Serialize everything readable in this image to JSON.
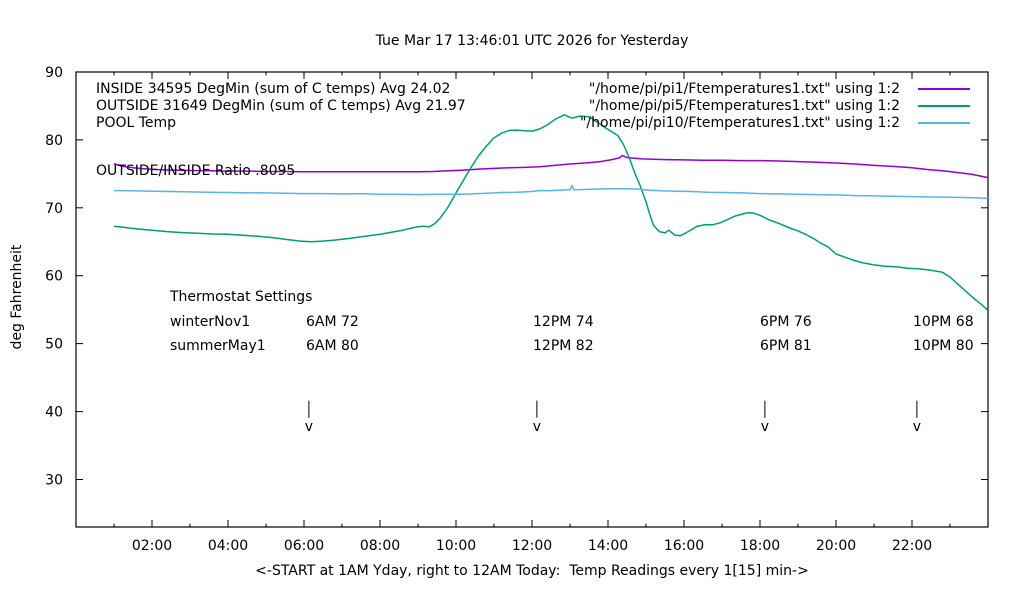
{
  "legend": {
    "rows": [
      {
        "left": "INSIDE 34595 DegMin (sum of C temps) Avg 24.02",
        "right": "\"/home/pi/pi1/Ftemperatures1.txt\" using 1:2"
      },
      {
        "left": "OUTSIDE 31649 DegMin (sum of C temps) Avg 21.97",
        "right": "\"/home/pi/pi5/Ftemperatures1.txt\" using 1:2"
      },
      {
        "left": "POOL Temp",
        "right": "\"/home/pi/pi10/Ftemperatures1.txt\" using 1:2"
      }
    ]
  },
  "annotations": {
    "ratio_label": "OUTSIDE/INSIDE Ratio .8095",
    "thermostat": {
      "heading": "Thermostat Settings",
      "rows": [
        {
          "season": "winterNov1",
          "c1": "6AM 72",
          "c2": "12PM 74",
          "c3": "6PM 76",
          "c4": "10PM 68"
        },
        {
          "season": "summerMay1",
          "c1": "6AM 80",
          "c2": "12PM 82",
          "c3": "6PM 81",
          "c4": "10PM 80"
        }
      ]
    }
  },
  "chart_data": {
    "type": "line",
    "title": "Tue Mar 17 13:46:01 UTC 2026 for Yesterday",
    "xlabel": "<-START at 1AM Yday, right to 12AM Today:  Temp Readings every 1[15] min->",
    "ylabel": "deg Fahrenheit",
    "x_unit_hours": "1 = 1AM yesterday, 24 = 12AM today",
    "xlim": [
      0,
      24
    ],
    "ylim": [
      23,
      90
    ],
    "grid": false,
    "legend_position": "top",
    "x_major_ticks": [
      {
        "t": 2,
        "label": "02:00"
      },
      {
        "t": 4,
        "label": "04:00"
      },
      {
        "t": 6,
        "label": "06:00"
      },
      {
        "t": 8,
        "label": "08:00"
      },
      {
        "t": 10,
        "label": "10:00"
      },
      {
        "t": 12,
        "label": "12:00"
      },
      {
        "t": 14,
        "label": "14:00"
      },
      {
        "t": 16,
        "label": "16:00"
      },
      {
        "t": 18,
        "label": "18:00"
      },
      {
        "t": 20,
        "label": "20:00"
      },
      {
        "t": 22,
        "label": "22:00"
      }
    ],
    "x_minor_ticks": [
      1,
      3,
      5,
      7,
      9,
      11,
      13,
      15,
      17,
      19,
      21,
      23
    ],
    "y_ticks": [
      30,
      40,
      50,
      60,
      70,
      80,
      90
    ],
    "arrows": {
      "times": [
        6.13,
        12.13,
        18.13,
        22.13
      ],
      "bar_top_f": 41.6,
      "bar_bottom_f": 39.1,
      "head_f": 37.1,
      "head_glyph": "v"
    },
    "series": [
      {
        "name": "INSIDE",
        "color": "#9400d3",
        "legend_left": "INSIDE 34595 DegMin (sum of C temps) Avg 24.02",
        "legend_right": "\"/home/pi/pi1/Ftemperatures1.txt\" using 1:2",
        "points": [
          [
            1.0,
            76.5
          ],
          [
            1.2,
            76.15
          ],
          [
            1.5,
            75.9
          ],
          [
            1.8,
            75.75
          ],
          [
            2.2,
            75.6
          ],
          [
            2.6,
            75.55
          ],
          [
            3.0,
            75.5
          ],
          [
            3.5,
            75.45
          ],
          [
            4.0,
            75.4
          ],
          [
            4.5,
            75.4
          ],
          [
            5.0,
            75.35
          ],
          [
            5.5,
            75.35
          ],
          [
            6.0,
            75.3
          ],
          [
            6.5,
            75.3
          ],
          [
            7.0,
            75.3
          ],
          [
            7.5,
            75.3
          ],
          [
            8.0,
            75.3
          ],
          [
            8.5,
            75.3
          ],
          [
            9.0,
            75.3
          ],
          [
            9.4,
            75.35
          ],
          [
            9.8,
            75.45
          ],
          [
            10.2,
            75.55
          ],
          [
            10.6,
            75.7
          ],
          [
            11.0,
            75.8
          ],
          [
            11.4,
            75.9
          ],
          [
            11.8,
            75.95
          ],
          [
            12.2,
            76.05
          ],
          [
            12.6,
            76.25
          ],
          [
            13.0,
            76.45
          ],
          [
            13.4,
            76.6
          ],
          [
            13.8,
            76.8
          ],
          [
            14.1,
            77.1
          ],
          [
            14.3,
            77.35
          ],
          [
            14.38,
            77.7
          ],
          [
            14.5,
            77.4
          ],
          [
            14.7,
            77.3
          ],
          [
            14.9,
            77.2
          ],
          [
            15.2,
            77.15
          ],
          [
            15.5,
            77.1
          ],
          [
            16.0,
            77.05
          ],
          [
            16.5,
            77.0
          ],
          [
            17.0,
            77.0
          ],
          [
            17.5,
            76.95
          ],
          [
            18.0,
            76.95
          ],
          [
            18.5,
            76.9
          ],
          [
            19.0,
            76.8
          ],
          [
            19.5,
            76.7
          ],
          [
            20.0,
            76.6
          ],
          [
            20.5,
            76.45
          ],
          [
            21.0,
            76.25
          ],
          [
            21.5,
            76.1
          ],
          [
            22.0,
            75.9
          ],
          [
            22.4,
            75.65
          ],
          [
            22.8,
            75.45
          ],
          [
            23.2,
            75.2
          ],
          [
            23.6,
            74.9
          ],
          [
            24.0,
            74.45
          ]
        ]
      },
      {
        "name": "OUTSIDE",
        "color": "#009e73",
        "legend_left": "OUTSIDE 31649 DegMin (sum of C temps) Avg 21.97",
        "legend_right": "\"/home/pi/pi5/Ftemperatures1.txt\" using 1:2",
        "points": [
          [
            1.0,
            67.3
          ],
          [
            1.3,
            67.1
          ],
          [
            1.6,
            66.9
          ],
          [
            2.0,
            66.7
          ],
          [
            2.4,
            66.5
          ],
          [
            2.8,
            66.35
          ],
          [
            3.2,
            66.25
          ],
          [
            3.6,
            66.15
          ],
          [
            4.0,
            66.1
          ],
          [
            4.4,
            65.95
          ],
          [
            4.8,
            65.8
          ],
          [
            5.2,
            65.6
          ],
          [
            5.6,
            65.3
          ],
          [
            5.9,
            65.1
          ],
          [
            6.2,
            65.0
          ],
          [
            6.5,
            65.1
          ],
          [
            6.8,
            65.25
          ],
          [
            7.2,
            65.5
          ],
          [
            7.6,
            65.8
          ],
          [
            8.0,
            66.1
          ],
          [
            8.3,
            66.4
          ],
          [
            8.6,
            66.7
          ],
          [
            8.9,
            67.1
          ],
          [
            9.1,
            67.3
          ],
          [
            9.3,
            67.2
          ],
          [
            9.45,
            67.7
          ],
          [
            9.6,
            68.6
          ],
          [
            9.8,
            70.2
          ],
          [
            10.0,
            72.2
          ],
          [
            10.2,
            74.1
          ],
          [
            10.4,
            76.0
          ],
          [
            10.6,
            77.7
          ],
          [
            10.8,
            79.1
          ],
          [
            11.0,
            80.3
          ],
          [
            11.2,
            81.0
          ],
          [
            11.4,
            81.4
          ],
          [
            11.6,
            81.45
          ],
          [
            11.8,
            81.35
          ],
          [
            12.0,
            81.3
          ],
          [
            12.2,
            81.6
          ],
          [
            12.4,
            82.2
          ],
          [
            12.6,
            83.0
          ],
          [
            12.85,
            83.7
          ],
          [
            13.05,
            83.2
          ],
          [
            13.25,
            83.5
          ],
          [
            13.5,
            83.4
          ],
          [
            13.7,
            82.7
          ],
          [
            13.9,
            81.9
          ],
          [
            14.1,
            81.2
          ],
          [
            14.25,
            80.7
          ],
          [
            14.4,
            79.4
          ],
          [
            14.55,
            77.5
          ],
          [
            14.7,
            75.2
          ],
          [
            14.85,
            73.2
          ],
          [
            15.0,
            70.9
          ],
          [
            15.1,
            69.0
          ],
          [
            15.2,
            67.4
          ],
          [
            15.35,
            66.5
          ],
          [
            15.5,
            66.3
          ],
          [
            15.6,
            66.7
          ],
          [
            15.75,
            66.0
          ],
          [
            15.9,
            65.9
          ],
          [
            16.05,
            66.3
          ],
          [
            16.2,
            66.8
          ],
          [
            16.35,
            67.3
          ],
          [
            16.55,
            67.5
          ],
          [
            16.75,
            67.5
          ],
          [
            16.95,
            67.8
          ],
          [
            17.15,
            68.3
          ],
          [
            17.35,
            68.8
          ],
          [
            17.55,
            69.1
          ],
          [
            17.7,
            69.3
          ],
          [
            17.85,
            69.2
          ],
          [
            18.0,
            68.9
          ],
          [
            18.25,
            68.2
          ],
          [
            18.5,
            67.7
          ],
          [
            18.75,
            67.1
          ],
          [
            19.0,
            66.6
          ],
          [
            19.2,
            66.1
          ],
          [
            19.4,
            65.5
          ],
          [
            19.6,
            64.8
          ],
          [
            19.8,
            64.2
          ],
          [
            20.0,
            63.2
          ],
          [
            20.2,
            62.8
          ],
          [
            20.45,
            62.3
          ],
          [
            20.7,
            61.9
          ],
          [
            21.0,
            61.6
          ],
          [
            21.3,
            61.4
          ],
          [
            21.6,
            61.3
          ],
          [
            21.9,
            61.1
          ],
          [
            22.2,
            61.0
          ],
          [
            22.5,
            60.8
          ],
          [
            22.8,
            60.5
          ],
          [
            23.0,
            59.8
          ],
          [
            23.2,
            58.8
          ],
          [
            23.4,
            57.8
          ],
          [
            23.6,
            56.8
          ],
          [
            23.8,
            55.9
          ],
          [
            24.0,
            54.9
          ]
        ]
      },
      {
        "name": "POOL",
        "color": "#56b4e9",
        "legend_left": "POOL Temp",
        "legend_right": "\"/home/pi/pi10/Ftemperatures1.txt\" using 1:2",
        "points": [
          [
            1.0,
            72.55
          ],
          [
            1.5,
            72.5
          ],
          [
            2.0,
            72.45
          ],
          [
            2.5,
            72.4
          ],
          [
            3.0,
            72.35
          ],
          [
            3.5,
            72.3
          ],
          [
            4.0,
            72.25
          ],
          [
            4.5,
            72.2
          ],
          [
            5.0,
            72.2
          ],
          [
            5.5,
            72.15
          ],
          [
            6.0,
            72.1
          ],
          [
            6.5,
            72.1
          ],
          [
            7.0,
            72.05
          ],
          [
            7.5,
            72.1
          ],
          [
            8.0,
            72.0
          ],
          [
            8.5,
            72.0
          ],
          [
            9.0,
            71.95
          ],
          [
            9.5,
            72.0
          ],
          [
            10.0,
            72.0
          ],
          [
            10.4,
            72.05
          ],
          [
            10.8,
            72.15
          ],
          [
            11.2,
            72.25
          ],
          [
            11.6,
            72.3
          ],
          [
            12.0,
            72.4
          ],
          [
            12.2,
            72.55
          ],
          [
            12.4,
            72.5
          ],
          [
            12.7,
            72.6
          ],
          [
            13.0,
            72.65
          ],
          [
            13.05,
            73.3
          ],
          [
            13.1,
            72.65
          ],
          [
            13.4,
            72.7
          ],
          [
            13.7,
            72.75
          ],
          [
            14.0,
            72.8
          ],
          [
            14.4,
            72.8
          ],
          [
            14.8,
            72.75
          ],
          [
            15.1,
            72.6
          ],
          [
            15.4,
            72.5
          ],
          [
            15.8,
            72.45
          ],
          [
            16.2,
            72.4
          ],
          [
            16.6,
            72.3
          ],
          [
            17.0,
            72.25
          ],
          [
            17.5,
            72.2
          ],
          [
            18.0,
            72.1
          ],
          [
            18.5,
            72.05
          ],
          [
            19.0,
            72.0
          ],
          [
            19.5,
            71.95
          ],
          [
            20.0,
            71.9
          ],
          [
            20.5,
            71.8
          ],
          [
            21.0,
            71.75
          ],
          [
            21.5,
            71.7
          ],
          [
            22.0,
            71.65
          ],
          [
            22.5,
            71.6
          ],
          [
            23.0,
            71.55
          ],
          [
            23.5,
            71.5
          ],
          [
            24.0,
            71.4
          ]
        ]
      }
    ]
  }
}
